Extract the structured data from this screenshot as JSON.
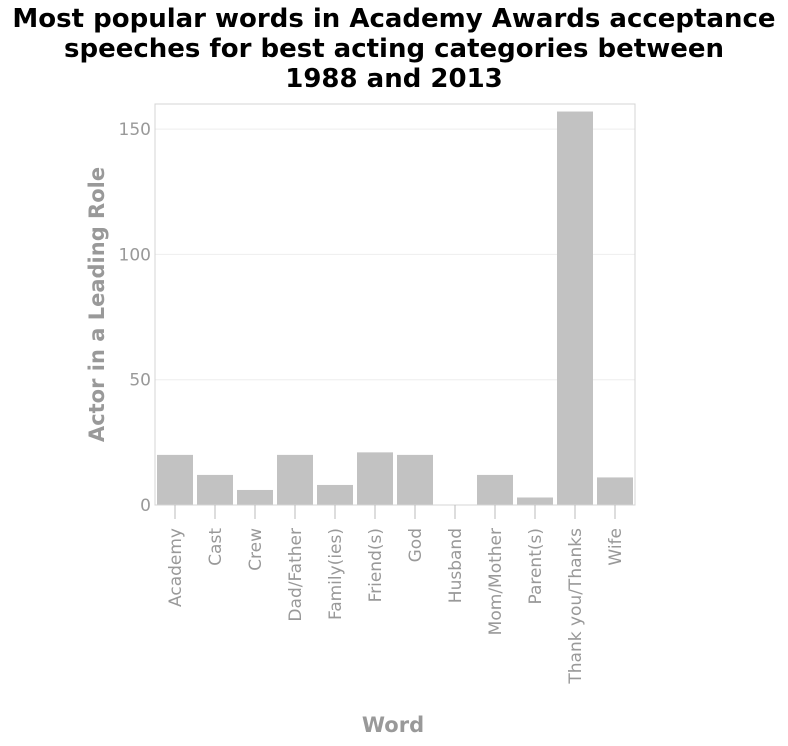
{
  "chart_data": {
    "type": "bar",
    "title_lines": [
      "Most popular words in Academy Awards acceptance",
      "speeches for best acting categories between",
      "1988 and 2013"
    ],
    "xlabel": "Word",
    "ylabel": "Actor in a Leading Role",
    "categories": [
      "Academy",
      "Cast",
      "Crew",
      "Dad/Father",
      "Family(ies)",
      "Friend(s)",
      "God",
      "Husband",
      "Mom/Mother",
      "Parent(s)",
      "Thank you/Thanks",
      "Wife"
    ],
    "values": [
      20,
      12,
      6,
      20,
      8,
      21,
      20,
      0,
      12,
      3,
      157,
      11
    ],
    "ylim": [
      0,
      160
    ],
    "yticks": [
      0,
      50,
      100,
      150
    ],
    "grid": true,
    "legend": "none",
    "bar_color": "#c2c2c2"
  }
}
